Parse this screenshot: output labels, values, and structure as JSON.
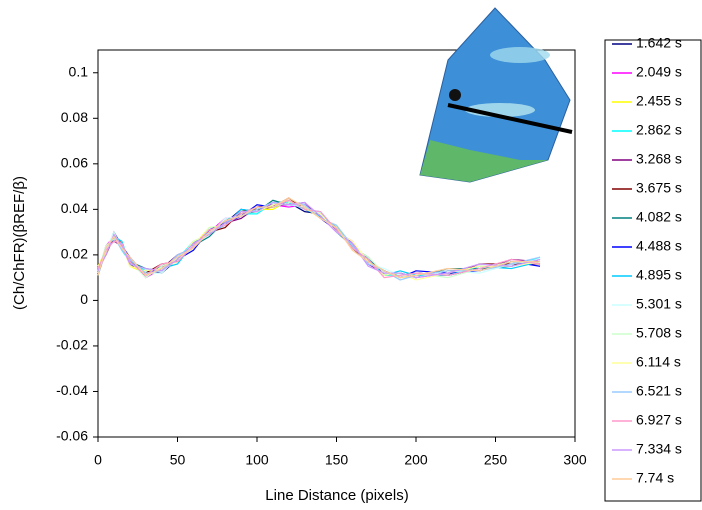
{
  "chart_data": {
    "type": "line",
    "x_label": "Line Distance (pixels)",
    "y_label": "(Ch/ChFR)(βREF/β)",
    "x": [
      0,
      5,
      10,
      15,
      20,
      30,
      40,
      50,
      60,
      70,
      80,
      90,
      100,
      110,
      120,
      130,
      140,
      150,
      160,
      170,
      180,
      190,
      200,
      220,
      240,
      260,
      278
    ],
    "xlim": [
      0,
      300
    ],
    "xticks": [
      0,
      50,
      100,
      150,
      200,
      250,
      300
    ],
    "ylim": [
      -0.06,
      0.11
    ],
    "yticks": [
      -0.06,
      -0.04,
      -0.02,
      0,
      0.02,
      0.04,
      0.06,
      0.08,
      0.1
    ],
    "series": [
      {
        "name": "1.642 s",
        "color": "#000080",
        "values": [
          0.014,
          0.021,
          0.03,
          0.024,
          0.016,
          0.013,
          0.012,
          0.018,
          0.025,
          0.029,
          0.034,
          0.04,
          0.039,
          0.043,
          0.043,
          0.039,
          0.038,
          0.031,
          0.023,
          0.019,
          0.011,
          0.011,
          0.012,
          0.011,
          0.014,
          0.017,
          0.016
        ]
      },
      {
        "name": "2.049 s",
        "color": "#ff00ff",
        "values": [
          0.012,
          0.024,
          0.028,
          0.023,
          0.018,
          0.01,
          0.014,
          0.019,
          0.023,
          0.03,
          0.036,
          0.037,
          0.041,
          0.042,
          0.041,
          0.042,
          0.037,
          0.03,
          0.026,
          0.016,
          0.012,
          0.012,
          0.01,
          0.012,
          0.015,
          0.015,
          0.018
        ]
      },
      {
        "name": "2.455 s",
        "color": "#ffff00",
        "values": [
          0.015,
          0.022,
          0.027,
          0.025,
          0.015,
          0.012,
          0.015,
          0.017,
          0.024,
          0.032,
          0.033,
          0.039,
          0.04,
          0.04,
          0.044,
          0.041,
          0.036,
          0.033,
          0.023,
          0.017,
          0.013,
          0.01,
          0.011,
          0.013,
          0.013,
          0.017,
          0.016
        ]
      },
      {
        "name": "2.862 s",
        "color": "#00ffff",
        "values": [
          0.013,
          0.021,
          0.029,
          0.022,
          0.017,
          0.013,
          0.013,
          0.018,
          0.026,
          0.029,
          0.035,
          0.038,
          0.038,
          0.043,
          0.043,
          0.04,
          0.039,
          0.03,
          0.024,
          0.018,
          0.011,
          0.011,
          0.012,
          0.011,
          0.015,
          0.015,
          0.019
        ]
      },
      {
        "name": "3.268 s",
        "color": "#800080",
        "values": [
          0.012,
          0.023,
          0.026,
          0.024,
          0.018,
          0.011,
          0.014,
          0.02,
          0.023,
          0.031,
          0.034,
          0.036,
          0.041,
          0.042,
          0.042,
          0.043,
          0.036,
          0.031,
          0.025,
          0.016,
          0.012,
          0.012,
          0.01,
          0.013,
          0.013,
          0.018,
          0.017
        ]
      },
      {
        "name": "3.675 s",
        "color": "#800000",
        "values": [
          0.014,
          0.02,
          0.028,
          0.025,
          0.016,
          0.012,
          0.016,
          0.017,
          0.025,
          0.03,
          0.032,
          0.039,
          0.04,
          0.041,
          0.045,
          0.04,
          0.037,
          0.032,
          0.023,
          0.017,
          0.013,
          0.01,
          0.012,
          0.011,
          0.016,
          0.016,
          0.016
        ]
      },
      {
        "name": "4.082 s",
        "color": "#008080",
        "values": [
          0.011,
          0.022,
          0.029,
          0.023,
          0.017,
          0.014,
          0.013,
          0.019,
          0.024,
          0.028,
          0.035,
          0.038,
          0.039,
          0.044,
          0.042,
          0.041,
          0.038,
          0.03,
          0.024,
          0.018,
          0.011,
          0.012,
          0.01,
          0.014,
          0.014,
          0.015,
          0.018
        ]
      },
      {
        "name": "4.488 s",
        "color": "#0000ff",
        "values": [
          0.013,
          0.023,
          0.027,
          0.024,
          0.019,
          0.011,
          0.015,
          0.018,
          0.022,
          0.031,
          0.034,
          0.037,
          0.042,
          0.041,
          0.043,
          0.042,
          0.036,
          0.031,
          0.025,
          0.016,
          0.013,
          0.01,
          0.013,
          0.012,
          0.013,
          0.017,
          0.015
        ]
      },
      {
        "name": "4.895 s",
        "color": "#00ccff",
        "values": [
          0.014,
          0.021,
          0.028,
          0.026,
          0.016,
          0.013,
          0.014,
          0.016,
          0.025,
          0.03,
          0.033,
          0.04,
          0.039,
          0.042,
          0.044,
          0.04,
          0.037,
          0.032,
          0.023,
          0.018,
          0.011,
          0.013,
          0.011,
          0.011,
          0.015,
          0.014,
          0.017
        ]
      },
      {
        "name": "5.301 s",
        "color": "#ccffff",
        "values": [
          0.012,
          0.022,
          0.03,
          0.023,
          0.018,
          0.012,
          0.012,
          0.019,
          0.024,
          0.029,
          0.036,
          0.037,
          0.04,
          0.043,
          0.042,
          0.041,
          0.038,
          0.03,
          0.025,
          0.016,
          0.014,
          0.011,
          0.01,
          0.013,
          0.012,
          0.016,
          0.018
        ]
      },
      {
        "name": "5.708 s",
        "color": "#ccffcc",
        "values": [
          0.013,
          0.024,
          0.027,
          0.025,
          0.017,
          0.01,
          0.015,
          0.018,
          0.023,
          0.032,
          0.033,
          0.038,
          0.041,
          0.041,
          0.043,
          0.042,
          0.036,
          0.032,
          0.023,
          0.019,
          0.012,
          0.01,
          0.012,
          0.01,
          0.014,
          0.017,
          0.016
        ]
      },
      {
        "name": "6.114 s",
        "color": "#ffff99",
        "values": [
          0.015,
          0.021,
          0.029,
          0.024,
          0.015,
          0.013,
          0.014,
          0.017,
          0.026,
          0.029,
          0.034,
          0.039,
          0.039,
          0.042,
          0.044,
          0.04,
          0.038,
          0.03,
          0.026,
          0.017,
          0.011,
          0.012,
          0.009,
          0.012,
          0.015,
          0.015,
          0.017
        ]
      },
      {
        "name": "6.521 s",
        "color": "#99ccff",
        "values": [
          0.012,
          0.023,
          0.028,
          0.022,
          0.018,
          0.012,
          0.013,
          0.02,
          0.023,
          0.03,
          0.035,
          0.037,
          0.04,
          0.043,
          0.042,
          0.042,
          0.036,
          0.033,
          0.024,
          0.016,
          0.013,
          0.009,
          0.011,
          0.013,
          0.013,
          0.016,
          0.019
        ]
      },
      {
        "name": "6.927 s",
        "color": "#ff99cc",
        "values": [
          0.014,
          0.022,
          0.026,
          0.025,
          0.017,
          0.011,
          0.016,
          0.017,
          0.024,
          0.031,
          0.033,
          0.038,
          0.041,
          0.041,
          0.044,
          0.04,
          0.039,
          0.031,
          0.023,
          0.018,
          0.01,
          0.011,
          0.012,
          0.011,
          0.014,
          0.018,
          0.016
        ]
      },
      {
        "name": "7.334 s",
        "color": "#cc99ff",
        "values": [
          0.013,
          0.02,
          0.029,
          0.024,
          0.016,
          0.014,
          0.013,
          0.018,
          0.025,
          0.029,
          0.034,
          0.039,
          0.039,
          0.043,
          0.042,
          0.043,
          0.037,
          0.03,
          0.025,
          0.015,
          0.012,
          0.012,
          0.01,
          0.012,
          0.016,
          0.015,
          0.018
        ]
      },
      {
        "name": "7.74 s",
        "color": "#ffcc99",
        "values": [
          0.011,
          0.023,
          0.028,
          0.023,
          0.019,
          0.011,
          0.014,
          0.019,
          0.023,
          0.03,
          0.035,
          0.037,
          0.041,
          0.041,
          0.045,
          0.041,
          0.036,
          0.032,
          0.022,
          0.017,
          0.013,
          0.01,
          0.011,
          0.014,
          0.013,
          0.017,
          0.017
        ]
      }
    ]
  }
}
